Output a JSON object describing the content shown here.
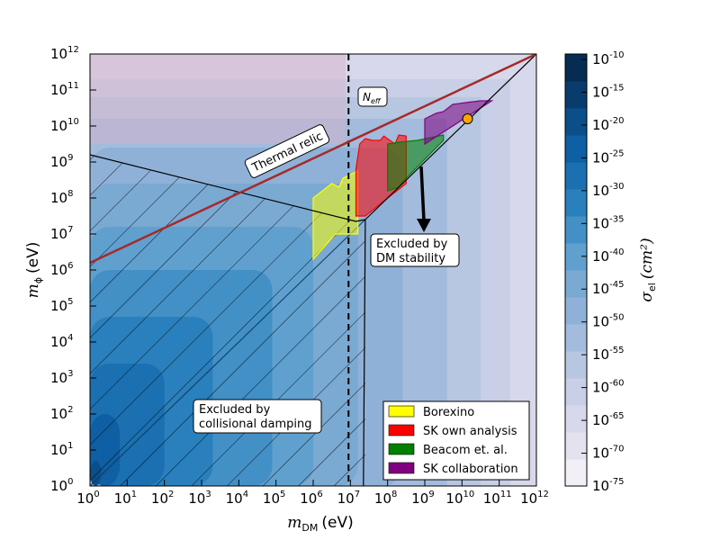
{
  "chart_data": {
    "type": "contour",
    "xlabel": {
      "sym": "m",
      "sub": "DM",
      "unit": "(eV)"
    },
    "ylabel": {
      "sym": "m",
      "sub": "ϕ",
      "unit": "(eV)"
    },
    "x_scale": "log",
    "y_scale": "log",
    "xlim": [
      1,
      1000000000000.0
    ],
    "ylim": [
      1,
      1000000000000.0
    ],
    "x_tick_exponents": [
      "0",
      "1",
      "2",
      "3",
      "4",
      "5",
      "6",
      "7",
      "8",
      "9",
      "10",
      "11",
      "12"
    ],
    "y_tick_exponents": [
      "0",
      "1",
      "2",
      "3",
      "4",
      "5",
      "6",
      "7",
      "8",
      "9",
      "10",
      "11",
      "12"
    ],
    "colorbar": {
      "label": "σ",
      "label_sub": "el",
      "label_unit": "(cm²)",
      "tick_exponents": [
        "-10",
        "-15",
        "-20",
        "-25",
        "-30",
        "-35",
        "-40",
        "-45",
        "-50",
        "-55",
        "-60",
        "-65",
        "-70",
        "-75"
      ],
      "levels": [
        "#f2eff7",
        "#e5e2f0",
        "#d7d8eb",
        "#c8cfe6",
        "#b7c7e1",
        "#a3bbdc",
        "#8fb1d7",
        "#7aa9d2",
        "#60a0cf",
        "#4290c6",
        "#2a80bc",
        "#1a70b1",
        "#0e5fa3",
        "#0a4f8a",
        "#083c6d",
        "#062c52"
      ]
    },
    "series": [
      {
        "name": "Borexino",
        "color": "#ffff00",
        "points": [
          [
            6,
            6.3
          ],
          [
            6,
            8.0
          ],
          [
            6.5,
            8.4
          ],
          [
            6.7,
            8.3
          ],
          [
            6.8,
            8.55
          ],
          [
            7.2,
            8.75
          ],
          [
            7.2,
            7.0
          ],
          [
            6.6,
            7.0
          ]
        ]
      },
      {
        "name": "SK own analysis",
        "color": "#ff0000",
        "points": [
          [
            7.15,
            7.5
          ],
          [
            7.15,
            8.8
          ],
          [
            7.25,
            9.5
          ],
          [
            7.3,
            9.55
          ],
          [
            7.4,
            9.65
          ],
          [
            7.6,
            9.6
          ],
          [
            7.8,
            9.6
          ],
          [
            7.9,
            9.72
          ],
          [
            8.2,
            9.5
          ],
          [
            8.3,
            9.75
          ],
          [
            8.5,
            9.72
          ],
          [
            8.5,
            8.4
          ],
          [
            8.0,
            8.0
          ],
          [
            7.4,
            7.5
          ]
        ]
      },
      {
        "name": "Beacom et. al.",
        "color": "#008000",
        "points": [
          [
            8.0,
            9.5
          ],
          [
            8.3,
            9.55
          ],
          [
            8.8,
            9.6
          ],
          [
            9.5,
            9.75
          ],
          [
            9.5,
            9.6
          ],
          [
            8.4,
            8.45
          ],
          [
            8.3,
            8.3
          ],
          [
            8.0,
            8.2
          ]
        ]
      },
      {
        "name": "SK collaboration",
        "color": "#800080",
        "points": [
          [
            9.0,
            10.2
          ],
          [
            9.3,
            10.35
          ],
          [
            9.5,
            10.4
          ],
          [
            9.75,
            10.6
          ],
          [
            10.1,
            10.65
          ],
          [
            10.5,
            10.7
          ],
          [
            10.8,
            10.7
          ],
          [
            9.0,
            9.5
          ]
        ]
      }
    ],
    "thermal_relic": {
      "label": "Thermal relic",
      "x": [
        0,
        12
      ],
      "y": [
        6.2,
        12
      ]
    },
    "neff_line_x": 6.95,
    "neff_label": {
      "sym": "N",
      "sub": "eff"
    },
    "collisional_damping_boundary": {
      "x": [
        0,
        7.15,
        7.4
      ],
      "y": [
        9.2,
        7.35,
        7.4
      ]
    },
    "dm_stability_boundary": {
      "x": [
        7.4,
        12
      ],
      "y": [
        7.4,
        12
      ]
    },
    "dm_stability_left_edge": {
      "x": [
        7.35,
        7.4
      ],
      "y": [
        0,
        7.4
      ]
    },
    "orange_point": {
      "x": 10.15,
      "y": 10.2
    },
    "annotations": {
      "collisional_damping": [
        "Excluded by",
        "collisional damping"
      ],
      "dm_stability": [
        "Excluded by",
        "DM stability"
      ]
    },
    "legend": {
      "location": "lower right"
    }
  }
}
